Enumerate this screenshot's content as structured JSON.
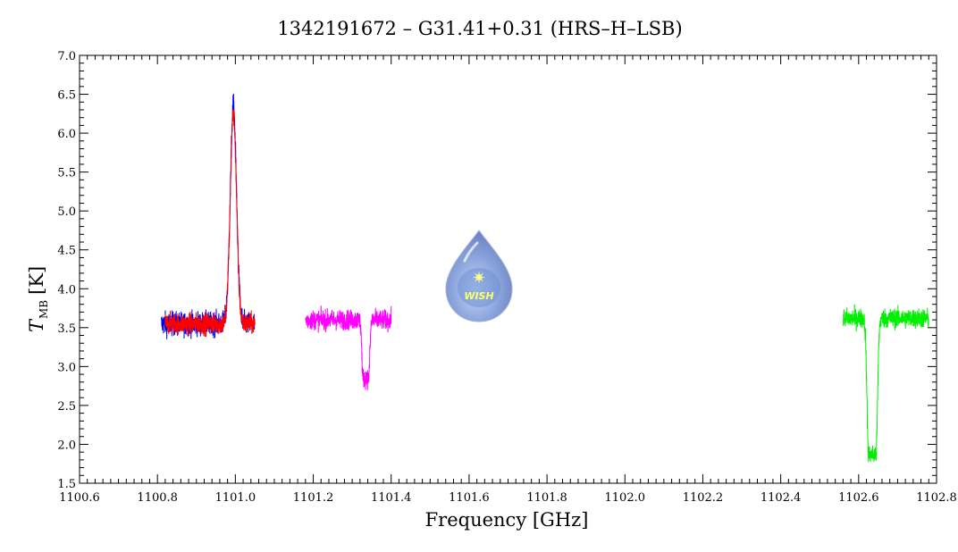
{
  "chart_data": {
    "type": "line",
    "title": "1342191672 – G31.41+0.31 (HRS–H–LSB)",
    "xlabel": "Frequency [GHz]",
    "ylabel_main": "T",
    "ylabel_sub": "MB",
    "ylabel_unit": "[K]",
    "xlim": [
      1100.6,
      1102.8
    ],
    "ylim": [
      1.5,
      7.0
    ],
    "xticks": [
      "1100.6",
      "1100.8",
      "1101.0",
      "1101.2",
      "1101.4",
      "1101.6",
      "1101.8",
      "1102.0",
      "1102.2",
      "1102.4",
      "1102.6",
      "1102.8"
    ],
    "yticks": [
      "1.5",
      "2.0",
      "2.5",
      "3.0",
      "3.5",
      "4.0",
      "4.5",
      "5.0",
      "5.5",
      "6.0",
      "6.5",
      "7.0"
    ],
    "logo_text": "WISH",
    "series": [
      {
        "color": "#0000ee",
        "x_range": [
          1100.81,
          1101.05
        ],
        "baseline": 3.55,
        "noise": 0.18,
        "emission": {
          "center": 1100.995,
          "width": 0.008,
          "peak": 2.8
        },
        "absorption": null
      },
      {
        "color": "#ff0000",
        "x_range": [
          1100.82,
          1101.05
        ],
        "baseline": 3.55,
        "noise": 0.16,
        "emission": {
          "center": 1100.995,
          "width": 0.008,
          "peak": 2.7
        },
        "absorption": null
      },
      {
        "color": "#ff00ff",
        "x_range": [
          1101.18,
          1101.4
        ],
        "baseline": 3.6,
        "noise": 0.15,
        "emission": null,
        "absorption": {
          "center": 1101.335,
          "width": 0.006,
          "depth": 0.75
        }
      },
      {
        "color": "#00ee00",
        "x_range": [
          1102.56,
          1102.78
        ],
        "baseline": 3.62,
        "noise": 0.15,
        "emission": null,
        "absorption": {
          "center": 1102.635,
          "width": 0.008,
          "depth": 1.75
        }
      }
    ]
  }
}
